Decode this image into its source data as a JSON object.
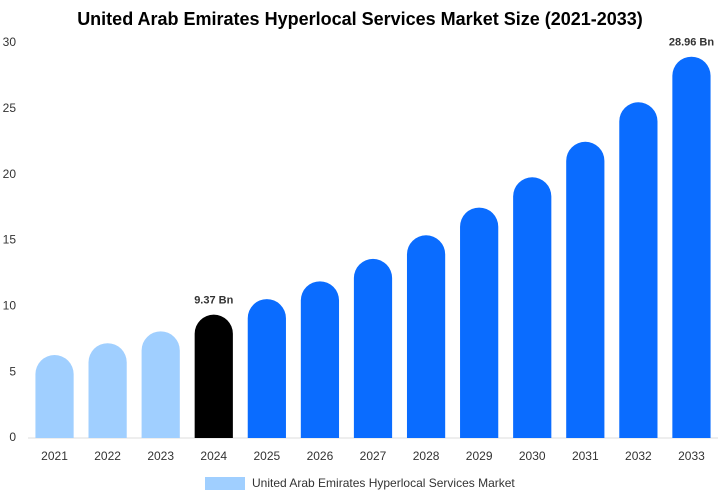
{
  "chart_data": {
    "type": "bar",
    "title": "United Arab Emirates Hyperlocal Services Market Size (2021-2033)",
    "categories": [
      "2021",
      "2022",
      "2023",
      "2024",
      "2025",
      "2026",
      "2027",
      "2028",
      "2029",
      "2030",
      "2031",
      "2032",
      "2033"
    ],
    "series": [
      {
        "name": "United Arab Emirates Hyperlocal Services Market",
        "color": "#a0cfff",
        "colors": [
          "#a0cfff",
          "#a0cfff",
          "#a0cfff",
          "#000000",
          "#0a6cff",
          "#0a6cff",
          "#0a6cff",
          "#0a6cff",
          "#0a6cff",
          "#0a6cff",
          "#0a6cff",
          "#0a6cff",
          "#0a6cff"
        ],
        "values": [
          6.3,
          7.2,
          8.1,
          9.37,
          10.55,
          11.9,
          13.6,
          15.4,
          17.5,
          19.8,
          22.5,
          25.5,
          28.96
        ],
        "value_labels": [
          null,
          null,
          null,
          "9.37 Bn",
          null,
          null,
          null,
          null,
          null,
          null,
          null,
          null,
          "28.96 Bn"
        ]
      }
    ],
    "ylim": [
      0,
      30
    ],
    "yticks": [
      0,
      5,
      10,
      15,
      20,
      25,
      30
    ]
  }
}
